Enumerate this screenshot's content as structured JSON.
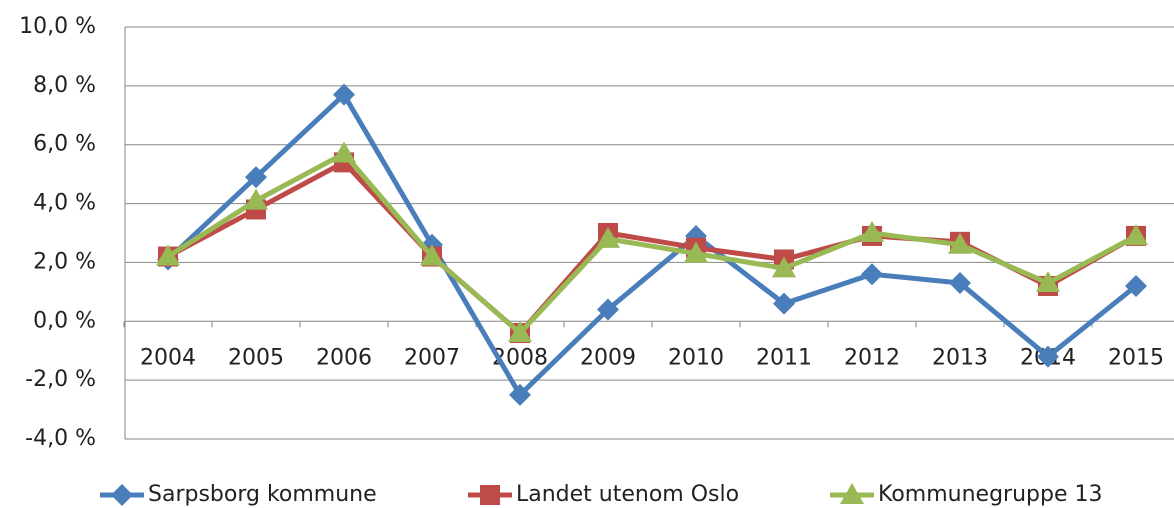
{
  "chart_data": {
    "type": "line",
    "categories": [
      "2004",
      "2005",
      "2006",
      "2007",
      "2008",
      "2009",
      "2010",
      "2011",
      "2012",
      "2013",
      "2014",
      "2015"
    ],
    "series": [
      {
        "name": "Sarpsborg kommune",
        "color": "#4a7ebb",
        "marker": "diamond",
        "values": [
          2.1,
          4.9,
          7.7,
          2.6,
          -2.5,
          0.4,
          2.9,
          0.6,
          1.6,
          1.3,
          -1.2,
          1.2
        ]
      },
      {
        "name": "Landet utenom Oslo",
        "color": "#be4b48",
        "marker": "square",
        "values": [
          2.2,
          3.8,
          5.4,
          2.2,
          -0.4,
          3.0,
          2.5,
          2.1,
          2.9,
          2.7,
          1.2,
          2.9
        ]
      },
      {
        "name": "Kommunegruppe 13",
        "color": "#98b954",
        "marker": "triangle",
        "values": [
          2.2,
          4.1,
          5.7,
          2.2,
          -0.4,
          2.8,
          2.3,
          1.8,
          3.0,
          2.6,
          1.3,
          2.9
        ]
      }
    ],
    "ylim": [
      -4,
      10
    ],
    "yticks": [
      {
        "value": -4,
        "label": "-4,0 %"
      },
      {
        "value": -2,
        "label": "-2,0 %"
      },
      {
        "value": 0,
        "label": "0,0 %"
      },
      {
        "value": 2,
        "label": "2,0 %"
      },
      {
        "value": 4,
        "label": "4,0 %"
      },
      {
        "value": 6,
        "label": "6,0 %"
      },
      {
        "value": 8,
        "label": "8,0 %"
      },
      {
        "value": 10,
        "label": "10,0 %"
      }
    ],
    "grid": true,
    "legend": "bottom"
  }
}
